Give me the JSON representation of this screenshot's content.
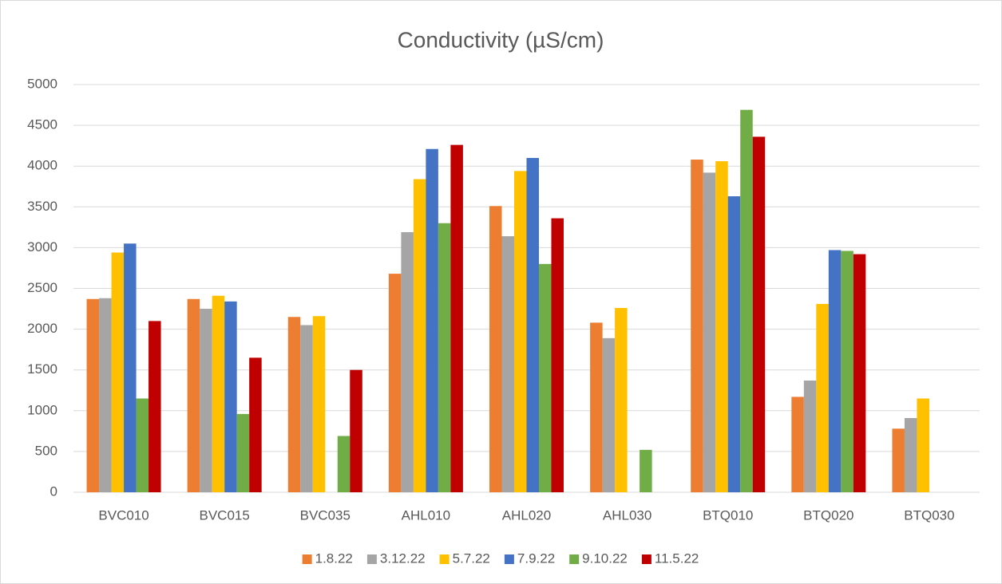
{
  "chart_data": {
    "type": "bar",
    "title": "Conductivity (µS/cm)",
    "categories": [
      "BVC010",
      "BVC015",
      "BVC035",
      "AHL010",
      "AHL020",
      "AHL030",
      "BTQ010",
      "BTQ020",
      "BTQ030"
    ],
    "series": [
      {
        "name": "1.8.22",
        "color": "#ed7d31",
        "values": [
          2370,
          2370,
          2150,
          2680,
          3510,
          2080,
          4080,
          1170,
          780
        ]
      },
      {
        "name": "3.12.22",
        "color": "#a5a5a5",
        "values": [
          2380,
          2250,
          2050,
          3190,
          3140,
          1890,
          3920,
          1370,
          910
        ]
      },
      {
        "name": "5.7.22",
        "color": "#ffc000",
        "values": [
          2940,
          2410,
          2160,
          3840,
          3940,
          2260,
          4060,
          2310,
          1150
        ]
      },
      {
        "name": "7.9.22",
        "color": "#4472c4",
        "values": [
          3050,
          2340,
          null,
          4210,
          4100,
          null,
          3630,
          2970,
          null
        ]
      },
      {
        "name": "9.10.22",
        "color": "#70ad47",
        "values": [
          1150,
          960,
          690,
          3300,
          2800,
          520,
          4690,
          2960,
          null
        ]
      },
      {
        "name": "11.5.22",
        "color": "#c00000",
        "values": [
          2100,
          1650,
          1500,
          4260,
          3360,
          null,
          4360,
          2920,
          null
        ]
      }
    ],
    "ylim": [
      0,
      5000
    ],
    "yticks": [
      0,
      500,
      1000,
      1500,
      2000,
      2500,
      3000,
      3500,
      4000,
      4500,
      5000
    ],
    "grid": true,
    "legend": "bottom"
  }
}
